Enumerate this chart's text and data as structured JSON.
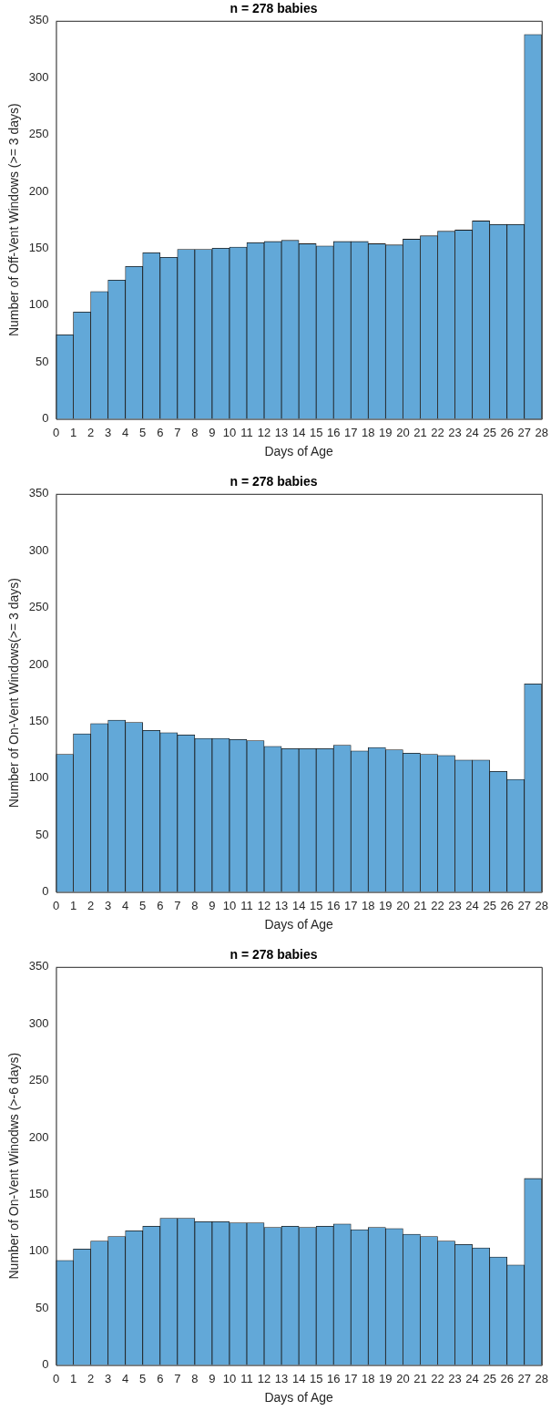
{
  "chart_data": [
    {
      "type": "histogram",
      "title": "n = 278 babies",
      "xlabel": "Days of Age",
      "ylabel": "Number of Off-Vent Windows (>= 3 days)",
      "bins": [
        0,
        1,
        2,
        3,
        4,
        5,
        6,
        7,
        8,
        9,
        10,
        11,
        12,
        13,
        14,
        15,
        16,
        17,
        18,
        19,
        20,
        21,
        22,
        23,
        24,
        25,
        26,
        27,
        28
      ],
      "values": [
        74,
        94,
        112,
        122,
        134,
        146,
        142,
        149,
        149,
        150,
        151,
        155,
        156,
        157,
        154,
        152,
        156,
        156,
        154,
        153,
        158,
        161,
        165,
        166,
        174,
        171,
        171,
        338
      ],
      "color": "#62a8d8",
      "xlim": [
        0,
        28
      ],
      "xticks": [
        0,
        1,
        2,
        3,
        4,
        5,
        6,
        7,
        8,
        9,
        10,
        11,
        12,
        13,
        14,
        15,
        16,
        17,
        18,
        19,
        20,
        21,
        22,
        23,
        24,
        25,
        26,
        27,
        28
      ],
      "ylim": [
        0,
        350
      ],
      "yticks": [
        0,
        50,
        100,
        150,
        200,
        250,
        300,
        350
      ],
      "grid": false
    },
    {
      "type": "histogram",
      "title": "n = 278 babies",
      "xlabel": "Days of Age",
      "ylabel": "Number of On-Vent Windows(>= 3 days)",
      "bins": [
        0,
        1,
        2,
        3,
        4,
        5,
        6,
        7,
        8,
        9,
        10,
        11,
        12,
        13,
        14,
        15,
        16,
        17,
        18,
        19,
        20,
        21,
        22,
        23,
        24,
        25,
        26,
        27,
        28
      ],
      "values": [
        121,
        139,
        148,
        151,
        149,
        142,
        140,
        138,
        135,
        135,
        134,
        133,
        128,
        126,
        126,
        126,
        129,
        124,
        127,
        125,
        122,
        121,
        120,
        116,
        116,
        106,
        99,
        183
      ],
      "color": "#62a8d8",
      "xlim": [
        0,
        28
      ],
      "xticks": [
        0,
        1,
        2,
        3,
        4,
        5,
        6,
        7,
        8,
        9,
        10,
        11,
        12,
        13,
        14,
        15,
        16,
        17,
        18,
        19,
        20,
        21,
        22,
        23,
        24,
        25,
        26,
        27,
        28
      ],
      "ylim": [
        0,
        350
      ],
      "yticks": [
        0,
        50,
        100,
        150,
        200,
        250,
        300,
        350
      ],
      "grid": false
    },
    {
      "type": "histogram",
      "title": "n = 278 babies",
      "xlabel": "Days of Age",
      "ylabel": "Number of On-Vent Winodws (>-6 days)",
      "bins": [
        0,
        1,
        2,
        3,
        4,
        5,
        6,
        7,
        8,
        9,
        10,
        11,
        12,
        13,
        14,
        15,
        16,
        17,
        18,
        19,
        20,
        21,
        22,
        23,
        24,
        25,
        26,
        27,
        28
      ],
      "values": [
        92,
        102,
        109,
        113,
        118,
        122,
        129,
        129,
        126,
        126,
        125,
        125,
        121,
        122,
        121,
        122,
        124,
        119,
        121,
        120,
        115,
        113,
        109,
        106,
        103,
        95,
        88,
        164
      ],
      "color": "#62a8d8",
      "xlim": [
        0,
        28
      ],
      "xticks": [
        0,
        1,
        2,
        3,
        4,
        5,
        6,
        7,
        8,
        9,
        10,
        11,
        12,
        13,
        14,
        15,
        16,
        17,
        18,
        19,
        20,
        21,
        22,
        23,
        24,
        25,
        26,
        27,
        28
      ],
      "ylim": [
        0,
        350
      ],
      "yticks": [
        0,
        50,
        100,
        150,
        200,
        250,
        300,
        350
      ],
      "grid": false
    }
  ]
}
